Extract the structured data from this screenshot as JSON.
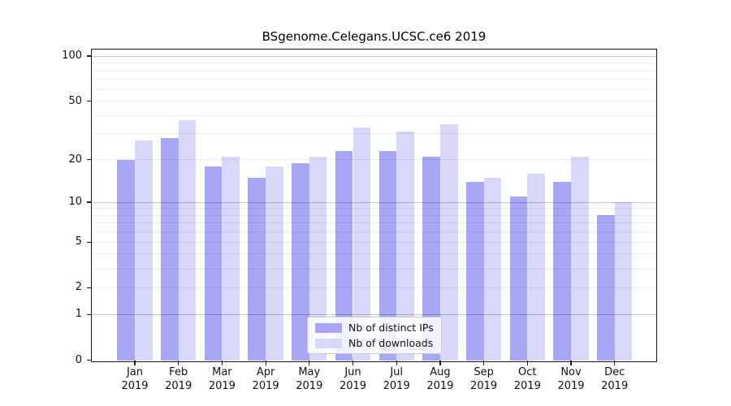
{
  "chart_data": {
    "type": "bar",
    "title": "BSgenome.Celegans.UCSC.ce6 2019",
    "categories": [
      "Jan 2019",
      "Feb 2019",
      "Mar 2019",
      "Apr 2019",
      "May 2019",
      "Jun 2019",
      "Jul 2019",
      "Aug 2019",
      "Sep 2019",
      "Oct 2019",
      "Nov 2019",
      "Dec 2019"
    ],
    "series": [
      {
        "name": "Nb of distinct IPs",
        "color": "#a7a7f6",
        "values": [
          20,
          28,
          18,
          15,
          19,
          23,
          23,
          21,
          14,
          11,
          14,
          8
        ]
      },
      {
        "name": "Nb of downloads",
        "color": "#d8d8fa",
        "values": [
          27,
          37,
          21,
          18,
          21,
          33,
          31,
          35,
          15,
          16,
          21,
          10
        ]
      }
    ],
    "yscale": "log1p",
    "y_tick_labels": [
      100,
      50,
      20,
      10,
      5,
      2,
      1,
      0
    ],
    "ylim": [
      0,
      110
    ],
    "grid_major_values": [
      1,
      10,
      100
    ],
    "grid": "on",
    "legend_position": "lower-center",
    "axis_color": "#1a1a1a"
  }
}
